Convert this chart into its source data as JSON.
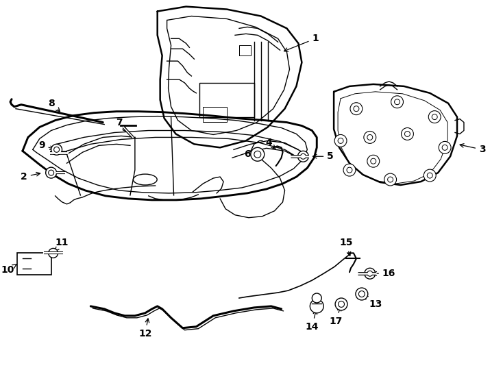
{
  "background_color": "#ffffff",
  "line_color": "#000000",
  "figsize": [
    7.34,
    5.4
  ],
  "dpi": 100,
  "lw_main": 1.8,
  "lw_thin": 1.0,
  "lw_detail": 0.7,
  "font_size": 10,
  "font_size_small": 8
}
